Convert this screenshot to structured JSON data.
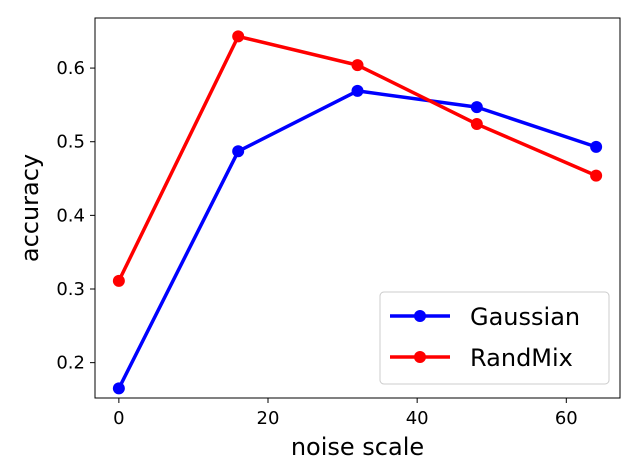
{
  "chart_data": {
    "type": "line",
    "xlabel": "noise scale",
    "ylabel": "accuracy",
    "xlim": [
      -3.2,
      67.2
    ],
    "ylim": [
      0.152,
      0.668
    ],
    "xticks": [
      0,
      20,
      40,
      60
    ],
    "yticks": [
      0.2,
      0.3,
      0.4,
      0.5,
      0.6
    ],
    "xtick_labels": [
      "0",
      "20",
      "40",
      "60"
    ],
    "ytick_labels": [
      "0.2",
      "0.3",
      "0.4",
      "0.5",
      "0.6"
    ],
    "x": [
      0,
      16,
      32,
      48,
      64
    ],
    "series": [
      {
        "name": "Gaussian",
        "color": "#0000ff",
        "values": [
          0.165,
          0.487,
          0.569,
          0.547,
          0.493
        ]
      },
      {
        "name": "RandMix",
        "color": "#ff0000",
        "values": [
          0.311,
          0.643,
          0.604,
          0.524,
          0.454
        ]
      }
    ],
    "grid": false,
    "legend_position": "lower-right"
  }
}
